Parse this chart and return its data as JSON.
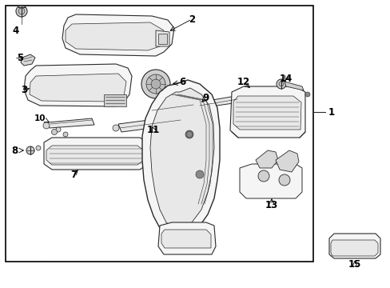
{
  "background_color": "#ffffff",
  "border_color": "#000000",
  "border_linewidth": 1.2,
  "fig_width": 4.89,
  "fig_height": 3.6,
  "dpi": 100,
  "label_fontsize": 8.5,
  "line_color": "#2a2a2a"
}
